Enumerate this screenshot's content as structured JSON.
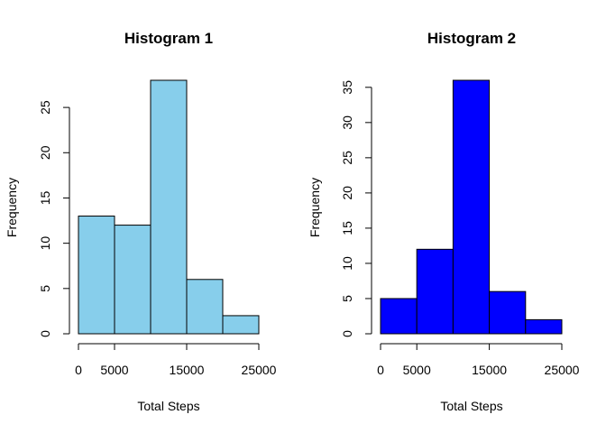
{
  "chart_data": [
    {
      "type": "bar",
      "title": "Histogram 1",
      "xlabel": "Total Steps",
      "ylabel": "Frequency",
      "bin_edges": [
        0,
        5000,
        10000,
        15000,
        20000,
        25000
      ],
      "values": [
        13,
        12,
        28,
        6,
        2
      ],
      "xticks": [
        0,
        5000,
        15000,
        25000
      ],
      "yticks": [
        0,
        5,
        10,
        15,
        20,
        25
      ],
      "xlim": [
        0,
        25000
      ],
      "ylim": [
        0,
        28
      ],
      "bar_color": "#87CEEB"
    },
    {
      "type": "bar",
      "title": "Histogram 2",
      "xlabel": "Total Steps",
      "ylabel": "Frequency",
      "bin_edges": [
        0,
        5000,
        10000,
        15000,
        20000,
        25000
      ],
      "values": [
        5,
        12,
        36,
        6,
        2
      ],
      "xticks": [
        0,
        5000,
        15000,
        25000
      ],
      "yticks": [
        0,
        5,
        10,
        15,
        20,
        25,
        30,
        35
      ],
      "xlim": [
        0,
        25000
      ],
      "ylim": [
        0,
        36
      ],
      "bar_color": "#0000FF"
    }
  ]
}
